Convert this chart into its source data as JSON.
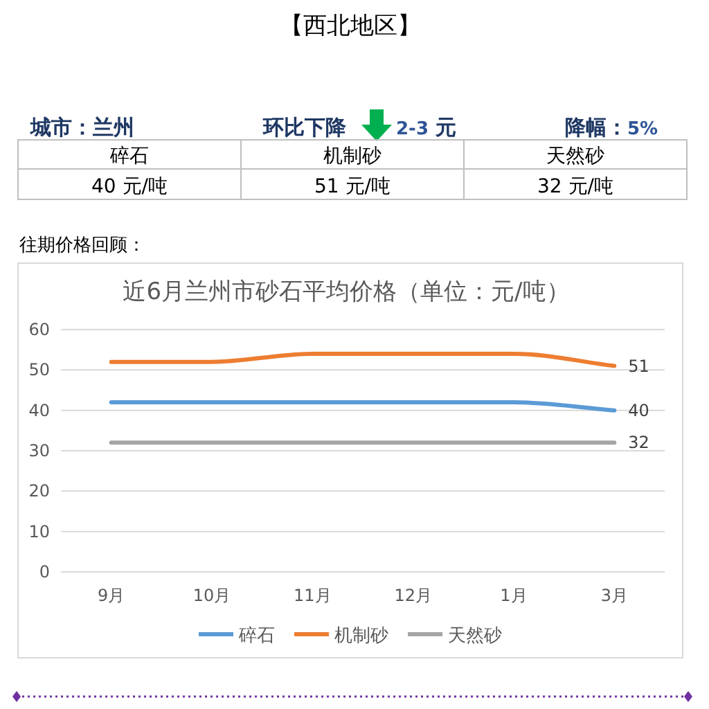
{
  "chart_data": [
    {
      "type": "other",
      "title": "【西北地区】",
      "annotations": [
        "城市：兰州",
        "环比下降",
        "2-3 元",
        "降幅：5%",
        "往期价格回顾："
      ],
      "categories": [
        "碎石",
        "机制砂",
        "天然砂"
      ],
      "values": [
        40,
        51,
        32
      ],
      "value_labels": [
        "40 元/吨",
        "51 元/吨",
        "32 元/吨"
      ]
    },
    {
      "type": "line",
      "title": "近6月兰州市砂石平均价格（单位：元/吨）",
      "categories": [
        "9月",
        "10月",
        "11月",
        "12月",
        "1月",
        "3月"
      ],
      "series": [
        {
          "name": "碎石",
          "color": "#5b9bd5",
          "values": [
            42,
            42,
            42,
            42,
            42,
            40
          ],
          "value_labels": [
            null,
            null,
            null,
            null,
            null,
            "40"
          ]
        },
        {
          "name": "机制砂",
          "color": "#ed7d31",
          "values": [
            52,
            52,
            54,
            54,
            54,
            51
          ],
          "value_labels": [
            null,
            null,
            null,
            null,
            null,
            "51"
          ]
        },
        {
          "name": "天然砂",
          "color": "#a5a5a5",
          "values": [
            32,
            32,
            32,
            32,
            32,
            32
          ],
          "value_labels": [
            null,
            null,
            null,
            null,
            null,
            "32"
          ]
        }
      ],
      "ylim": [
        0,
        60
      ],
      "yticks": [
        0,
        10,
        20,
        30,
        40,
        50,
        60
      ],
      "grid": "y",
      "legend": "bottom"
    }
  ]
}
